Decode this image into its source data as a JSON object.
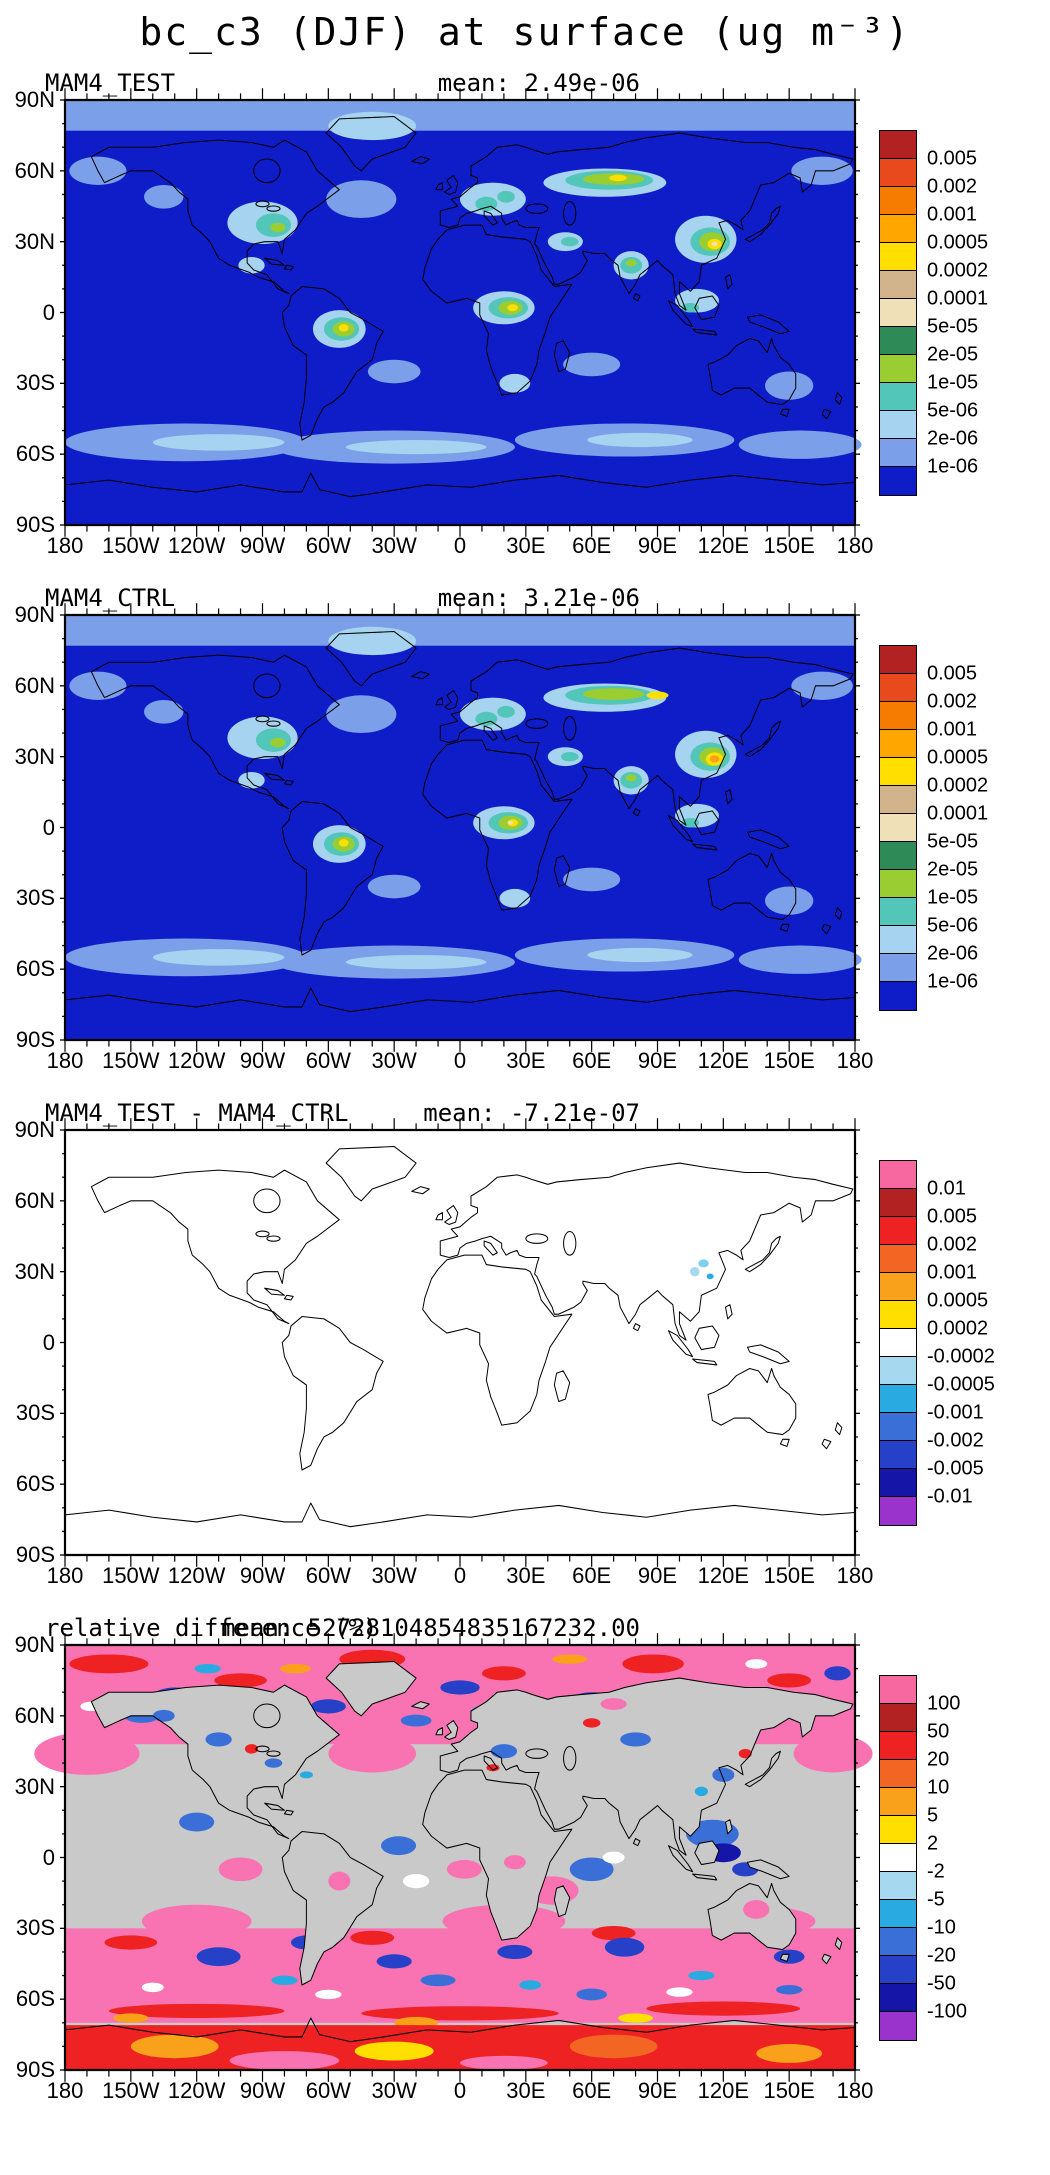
{
  "title": "bc_c3 (DJF) at surface (ug m⁻³)",
  "axes": {
    "lat_labels": [
      "90N",
      "60N",
      "30N",
      "0",
      "30S",
      "60S",
      "90S"
    ],
    "lon_labels": [
      "180",
      "150W",
      "120W",
      "90W",
      "60W",
      "30W",
      "0",
      "30E",
      "60E",
      "90E",
      "120E",
      "150E",
      "180"
    ]
  },
  "panels": [
    {
      "title": "MAM4_TEST",
      "mean": "mean: 2.49e-06",
      "colorbar": {
        "tick_labels": [
          "0.005",
          "0.002",
          "0.001",
          "0.0005",
          "0.0002",
          "0.0001",
          "5e-05",
          "2e-05",
          "1e-05",
          "5e-06",
          "2e-06",
          "1e-06"
        ],
        "colors": [
          "#b22222",
          "#e8491d",
          "#f57c00",
          "#ffa600",
          "#ffdf00",
          "#d2b48c",
          "#efe0b8",
          "#2e8b57",
          "#9acd32",
          "#52c6b8",
          "#a6d3ef",
          "#7b9fe8",
          "#0f1dc9"
        ]
      }
    },
    {
      "title": "MAM4_CTRL",
      "mean": "mean: 3.21e-06",
      "colorbar": {
        "tick_labels": [
          "0.005",
          "0.002",
          "0.001",
          "0.0005",
          "0.0002",
          "0.0001",
          "5e-05",
          "2e-05",
          "1e-05",
          "5e-06",
          "2e-06",
          "1e-06"
        ],
        "colors": [
          "#b22222",
          "#e8491d",
          "#f57c00",
          "#ffa600",
          "#ffdf00",
          "#d2b48c",
          "#efe0b8",
          "#2e8b57",
          "#9acd32",
          "#52c6b8",
          "#a6d3ef",
          "#7b9fe8",
          "#0f1dc9"
        ]
      }
    },
    {
      "title": "MAM4_TEST - MAM4_CTRL",
      "mean": "mean: -7.21e-07",
      "colorbar": {
        "tick_labels": [
          "0.01",
          "0.005",
          "0.002",
          "0.001",
          "0.0005",
          "0.0002",
          "-0.0002",
          "-0.0005",
          "-0.001",
          "-0.002",
          "-0.005",
          "-0.01"
        ],
        "colors": [
          "#f768a1",
          "#b22222",
          "#ee2222",
          "#f26522",
          "#f9a11b",
          "#ffdf00",
          "#ffffff",
          "#a6d8f0",
          "#29abe2",
          "#3a6fd8",
          "#2641c8",
          "#1516a8",
          "#9933cc"
        ]
      }
    },
    {
      "title": "relative difference (%)",
      "mean": "mean: 52728104854835167232.00",
      "colorbar": {
        "tick_labels": [
          "100",
          "50",
          "20",
          "10",
          "5",
          "2",
          "-2",
          "-5",
          "-10",
          "-20",
          "-50",
          "-100"
        ],
        "colors": [
          "#f768a1",
          "#b22222",
          "#ee2222",
          "#f26522",
          "#f9a11b",
          "#ffdf00",
          "#ffffff",
          "#a6d8f0",
          "#29abe2",
          "#3a6fd8",
          "#2641c8",
          "#1516a8",
          "#9933cc"
        ]
      }
    }
  ],
  "chart_data": {
    "type": "heatmap",
    "subtype": "global filled-contour latitude-longitude maps, cylindrical equidistant projection, 4 stacked panels each with its own labelbar",
    "figure_title": "bc_c3 (DJF) at surface (ug m⁻³)",
    "units": "ug m^-3",
    "lon_range": [
      -180,
      180
    ],
    "lat_range": [
      -90,
      90
    ],
    "lon_ticks": [
      -180,
      -150,
      -120,
      -90,
      -60,
      -30,
      0,
      30,
      60,
      90,
      120,
      150,
      180
    ],
    "lat_ticks": [
      90,
      60,
      30,
      0,
      -30,
      -60,
      -90
    ],
    "grid": false,
    "legend_position": "right of each panel",
    "panels": [
      {
        "name": "MAM4_TEST",
        "statistic": "mean",
        "mean": 2.49e-06,
        "contour_levels": [
          1e-06,
          2e-06,
          5e-06,
          1e-05,
          2e-05,
          5e-05,
          0.0001,
          0.0002,
          0.0005,
          0.001,
          0.002,
          0.005
        ],
        "notable_features": "deep-blue oceans (< 1e-06) with elevated values over eastern North America, Amazonia, central Africa, Europe, Siberia, India and a yellow maximum over east China; lighter blue band over the Southern Ocean"
      },
      {
        "name": "MAM4_CTRL",
        "statistic": "mean",
        "mean": 3.21e-06,
        "contour_levels": [
          1e-06,
          2e-06,
          5e-06,
          1e-05,
          2e-05,
          5e-05,
          0.0001,
          0.0002,
          0.0005,
          0.001,
          0.002,
          0.005
        ],
        "notable_features": "same pattern as MAM4_TEST but slightly stronger, with an orange maximum over east China"
      },
      {
        "name": "MAM4_TEST - MAM4_CTRL",
        "statistic": "mean",
        "mean": -7.21e-07,
        "contour_levels": [
          -0.01,
          -0.005,
          -0.002,
          -0.001,
          -0.0005,
          -0.0002,
          0.0002,
          0.0005,
          0.001,
          0.002,
          0.005,
          0.01
        ],
        "notable_features": "difference within +/-0.0002 (white) almost everywhere; small negative (pale blue / cyan) spots over east China"
      },
      {
        "name": "relative difference (%)",
        "statistic": "mean",
        "mean": 5.272810485483517e+19,
        "contour_levels": [
          -100,
          -50,
          -20,
          -10,
          -5,
          -2,
          2,
          5,
          10,
          20,
          50,
          100
        ],
        "notable_features": "gray (undefined/small) over tropics and continents; pink (>100%) dominating high-latitude oceans with noisy red/blue/white structure; red band along Antarctic margin"
      }
    ]
  }
}
